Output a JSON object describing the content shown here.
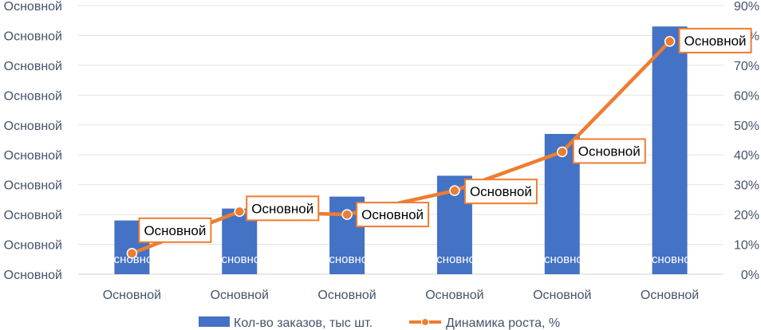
{
  "chart_data": {
    "type": "bar",
    "categories": [
      "Основной",
      "Основной",
      "Основной",
      "Основной",
      "Основной",
      "Основной"
    ],
    "left_axis": {
      "ylim": [
        0,
        9
      ],
      "tick_labels": [
        "Основной",
        "Основной",
        "Основной",
        "Основной",
        "Основной",
        "Основной",
        "Основной",
        "Основной",
        "Основной",
        "Основной"
      ]
    },
    "right_axis": {
      "ylim": [
        0,
        0.9
      ],
      "tick_labels": [
        "0%",
        "10%",
        "20%",
        "30%",
        "40%",
        "50%",
        "60%",
        "70%",
        "80%",
        "90%"
      ]
    },
    "series": [
      {
        "name": "Кол-во заказов, тыс шт.",
        "type": "bar",
        "axis": "left",
        "color": "#4472c4",
        "values": [
          1.8,
          2.2,
          2.6,
          3.3,
          4.7,
          8.3
        ],
        "data_labels": [
          "Основной",
          "Основной",
          "Основной",
          "Основной",
          "Основной",
          "Основной"
        ]
      },
      {
        "name": "Динамика роста, %",
        "type": "line",
        "axis": "right",
        "color": "#ed7d31",
        "values": [
          0.07,
          0.21,
          0.2,
          0.28,
          0.41,
          0.78
        ],
        "data_labels": [
          "Основной",
          "Основной",
          "Основной",
          "Основной",
          "Основной",
          "Основной"
        ]
      }
    ],
    "grid": true,
    "legend": "bottom"
  }
}
